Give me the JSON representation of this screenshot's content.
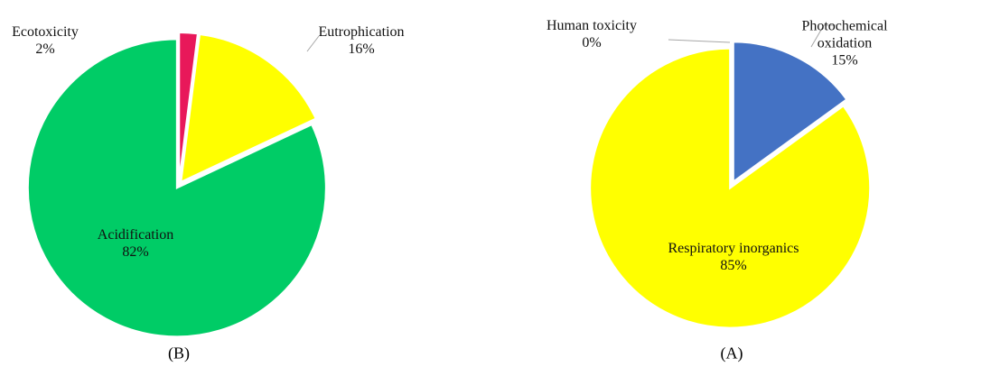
{
  "chart_data": [
    {
      "type": "pie",
      "caption": "(B)",
      "categories": [
        "Ecotoxicity",
        "Eutrophication",
        "Acidification"
      ],
      "values": [
        2,
        16,
        82
      ],
      "value_labels": [
        "2%",
        "16%",
        "82%"
      ],
      "colors": [
        "#e8185a",
        "#ffff00",
        "#00cc66"
      ]
    },
    {
      "type": "pie",
      "caption": "(A)",
      "categories": [
        "Human toxicity",
        "Photochemical oxidation",
        "Respiratory inorganics"
      ],
      "values": [
        0,
        15,
        85
      ],
      "value_labels": [
        "0%",
        "15%",
        "85%"
      ],
      "colors": [
        "#a5a5a5",
        "#4472c4",
        "#ffff00"
      ]
    }
  ]
}
